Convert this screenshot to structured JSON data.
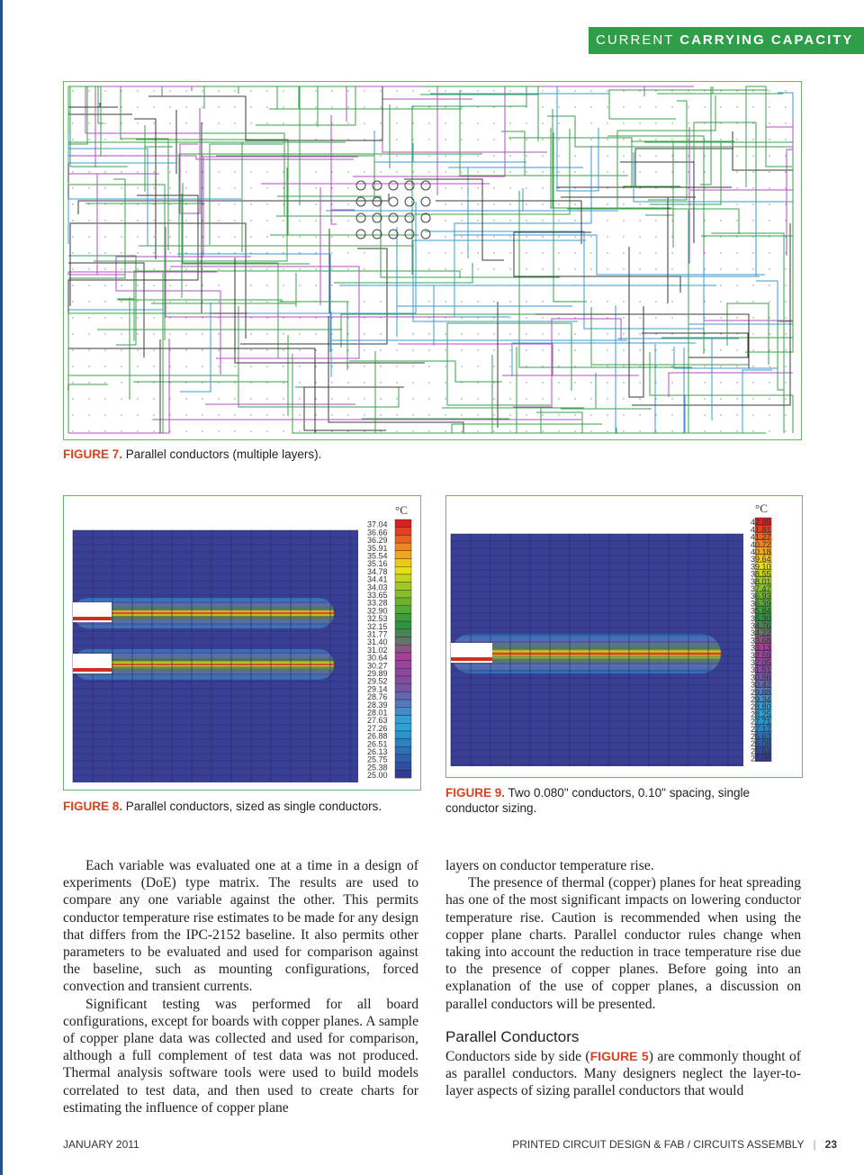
{
  "header": {
    "section_light": "CURRENT ",
    "section_bold": "CARRYING CAPACITY"
  },
  "figure7": {
    "label": "FIGURE 7.",
    "caption": " Parallel conductors (multiple layers)."
  },
  "figure8": {
    "label": "FIGURE 8.",
    "caption": " Parallel conductors, sized as single conductors.",
    "unit": "°C",
    "scale": [
      "37.04",
      "36.66",
      "36.29",
      "35.91",
      "35.54",
      "35.16",
      "34.78",
      "34.41",
      "34.03",
      "33.65",
      "33.28",
      "32.90",
      "32.53",
      "32.15",
      "31.77",
      "31.40",
      "31.02",
      "30.64",
      "30.27",
      "29.89",
      "29.52",
      "29.14",
      "28.76",
      "28.39",
      "28.01",
      "27.63",
      "27.26",
      "26.88",
      "26.51",
      "26.13",
      "25.75",
      "25.38",
      "25.00"
    ]
  },
  "figure9": {
    "label": "FIGURE 9.",
    "caption": " Two 0.080\" conductors, 0.10\" spacing, single conductor sizing.",
    "unit": "°C",
    "scale": [
      "42.35",
      "41.81",
      "41.27",
      "40.72",
      "40.18",
      "39.64",
      "39.10",
      "38.55",
      "38.01",
      "37.47",
      "36.93",
      "36.39",
      "35.84",
      "35.30",
      "34.76",
      "34.22",
      "33.68",
      "33.13",
      "32.59",
      "32.05",
      "31.51",
      "30.96",
      "30.42",
      "29.88",
      "29.34",
      "28.80",
      "28.25",
      "27.71",
      "27.17",
      "26.63",
      "26.08",
      "25.54",
      "25.00"
    ]
  },
  "body": {
    "left_p1": "Each variable was evaluated one at a time in a design of experiments (DoE) type matrix. The results are used to compare any one variable against the other. This permits conductor temperature rise estimates to be made for any design that differs from the IPC-2152 baseline. It also permits other parameters to be evaluated and used for comparison against the baseline, such as mounting configurations, forced convection and transient currents.",
    "left_p2": "Significant testing was performed for all board configurations, except for boards with copper planes. A sample of copper plane data was collected and used for comparison, although a full complement of test data was not produced. Thermal analysis software tools were used to build models correlated to test data, and then used to create charts for estimating the influence of copper plane",
    "right_p1": "layers on conductor temperature rise.",
    "right_p2": "The presence of thermal (copper) planes for heat spreading has one of the most significant impacts on lowering conductor temperature rise. Caution is recommended when using the copper plane charts. Parallel conductor rules change when taking into account the reduction in trace temperature rise due to the presence of copper planes. Before going into an explanation of the use of copper planes, a discussion on parallel conductors will be presented.",
    "heading": "Parallel Conductors",
    "right_p3_a": "Conductors side by side (",
    "right_p3_ref": "FIGURE 5",
    "right_p3_b": ") are commonly thought of as parallel conductors. Many designers neglect the layer-to-layer aspects of sizing parallel conductors that would"
  },
  "footer": {
    "date": "JANUARY 2011",
    "publication": "PRINTED CIRCUIT DESIGN & FAB / CIRCUITS ASSEMBLY",
    "separator": "|",
    "page": "23"
  },
  "colors": {
    "accent": "#2e9e48",
    "label": "#d9431e"
  }
}
